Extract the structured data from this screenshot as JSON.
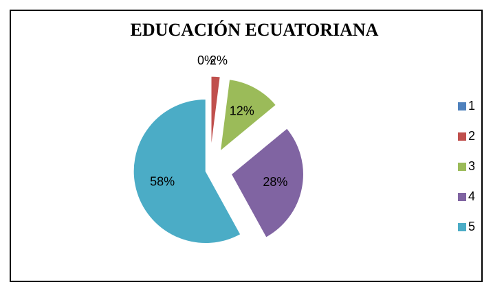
{
  "chart_data": {
    "type": "pie",
    "title": "EDUCACIÓN ECUATORIANA",
    "categories": [
      "1",
      "2",
      "3",
      "4",
      "5"
    ],
    "values": [
      0,
      2,
      12,
      28,
      58
    ],
    "value_labels": [
      "0%",
      "2%",
      "12%",
      "28%",
      "58%"
    ],
    "colors": [
      "#4f81bd",
      "#c0504d",
      "#9bbb59",
      "#8064a2",
      "#4bacc6"
    ],
    "legend": "right"
  }
}
